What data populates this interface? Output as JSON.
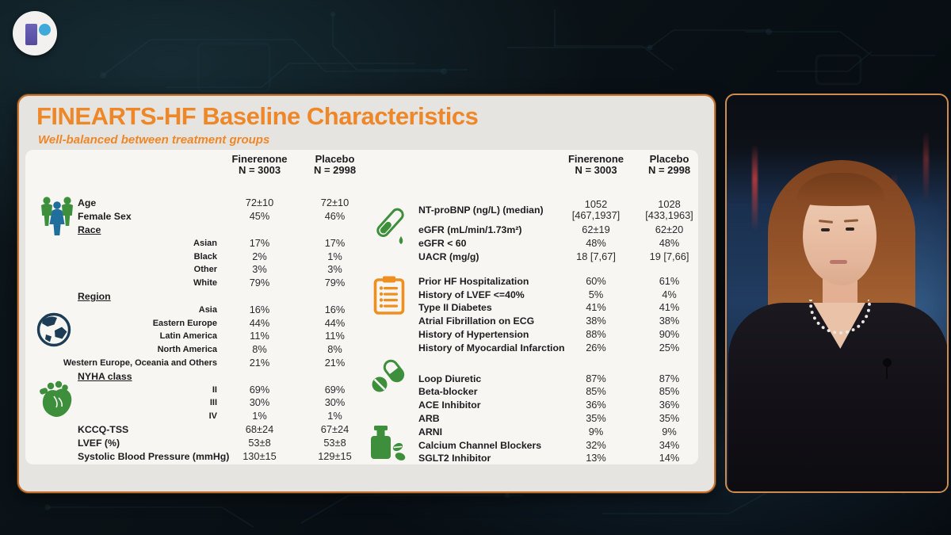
{
  "colors": {
    "accent_orange": "#ee8727",
    "slide_border_orange": "#c9732f",
    "icon_green": "#3e8f3c",
    "icon_navy": "#1d3c55",
    "icon_orange": "#ef8f1f",
    "figure_blue": "#1f6e9c",
    "logo_purple": "#5a50a5",
    "logo_blue": "#3fa9d9"
  },
  "icons": {
    "logo": "r-logo",
    "left": [
      "people-icon",
      "globe-icon",
      "heart-icon"
    ],
    "right": [
      "test-tube-icon",
      "clipboard-icon",
      "pills-icon",
      "medicine-bottle-icon"
    ]
  },
  "slide": {
    "title": "FINEARTS-HF Baseline Characteristics",
    "subtitle": "Well-balanced between treatment groups",
    "columns": {
      "col1": "Finerenone\nN = 3003",
      "col2": "Placebo\nN = 2998"
    },
    "left_table": {
      "rows": [
        {
          "t": "main",
          "l": "Age",
          "v1": "72±10",
          "v2": "72±10"
        },
        {
          "t": "main",
          "l": "Female Sex",
          "v1": "45%",
          "v2": "46%"
        },
        {
          "t": "cat",
          "l": "Race",
          "v1": "",
          "v2": ""
        },
        {
          "t": "sub",
          "l": "Asian",
          "v1": "17%",
          "v2": "17%"
        },
        {
          "t": "sub",
          "l": "Black",
          "v1": "2%",
          "v2": "1%"
        },
        {
          "t": "sub",
          "l": "Other",
          "v1": "3%",
          "v2": "3%"
        },
        {
          "t": "sub",
          "l": "White",
          "v1": "79%",
          "v2": "79%"
        },
        {
          "t": "cat",
          "l": "Region",
          "v1": "",
          "v2": ""
        },
        {
          "t": "sub",
          "l": "Asia",
          "v1": "16%",
          "v2": "16%"
        },
        {
          "t": "sub",
          "l": "Eastern Europe",
          "v1": "44%",
          "v2": "44%"
        },
        {
          "t": "sub",
          "l": "Latin America",
          "v1": "11%",
          "v2": "11%"
        },
        {
          "t": "sub",
          "l": "North America",
          "v1": "8%",
          "v2": "8%"
        },
        {
          "t": "sub",
          "l": "Western Europe, Oceania and Others",
          "v1": "21%",
          "v2": "21%"
        },
        {
          "t": "cat",
          "l": "NYHA class",
          "v1": "",
          "v2": ""
        },
        {
          "t": "sub",
          "l": "II",
          "v1": "69%",
          "v2": "69%"
        },
        {
          "t": "sub",
          "l": "III",
          "v1": "30%",
          "v2": "30%"
        },
        {
          "t": "sub",
          "l": "IV",
          "v1": "1%",
          "v2": "1%"
        },
        {
          "t": "main",
          "l": "KCCQ-TSS",
          "v1": "68±24",
          "v2": "67±24"
        },
        {
          "t": "main",
          "l": "LVEF (%)",
          "v1": "53±8",
          "v2": "53±8"
        },
        {
          "t": "main",
          "l": "Systolic Blood Pressure (mmHg)",
          "v1": "130±15",
          "v2": "129±15"
        }
      ]
    },
    "right_table": {
      "rows": [
        {
          "t": "main2",
          "l": "NT-proBNP (ng/L) (median)",
          "v1": "1052\n[467,1937]",
          "v2": "1028\n[433,1963]"
        },
        {
          "t": "main",
          "l": "eGFR (mL/min/1.73m²)",
          "v1": "62±19",
          "v2": "62±20"
        },
        {
          "t": "main",
          "l": "eGFR < 60",
          "v1": "48%",
          "v2": "48%"
        },
        {
          "t": "main",
          "l": "UACR (mg/g)",
          "v1": "18 [7,67]",
          "v2": "19 [7,66]"
        },
        {
          "t": "gap",
          "h": 14
        },
        {
          "t": "main",
          "l": "Prior HF Hospitalization",
          "v1": "60%",
          "v2": "61%"
        },
        {
          "t": "main",
          "l": "History of LVEF <=40%",
          "v1": "5%",
          "v2": "4%"
        },
        {
          "t": "main",
          "l": "Type II Diabetes",
          "v1": "41%",
          "v2": "41%"
        },
        {
          "t": "main",
          "l": "Atrial Fibrillation on ECG",
          "v1": "38%",
          "v2": "38%"
        },
        {
          "t": "main",
          "l": "History of Hypertension",
          "v1": "88%",
          "v2": "90%"
        },
        {
          "t": "main",
          "l": "History of Myocardial Infarction",
          "v1": "26%",
          "v2": "25%"
        },
        {
          "t": "gap",
          "h": 22
        },
        {
          "t": "main",
          "l": "Loop Diuretic",
          "v1": "87%",
          "v2": "87%"
        },
        {
          "t": "main",
          "l": "Beta-blocker",
          "v1": "85%",
          "v2": "85%"
        },
        {
          "t": "main",
          "l": "ACE Inhibitor",
          "v1": "36%",
          "v2": "36%"
        },
        {
          "t": "main",
          "l": "ARB",
          "v1": "35%",
          "v2": "35%"
        },
        {
          "t": "main",
          "l": "ARNI",
          "v1": "9%",
          "v2": "9%"
        },
        {
          "t": "main",
          "l": "Calcium Channel Blockers",
          "v1": "32%",
          "v2": "34%"
        },
        {
          "t": "main",
          "l": "SGLT2 Inhibitor",
          "v1": "13%",
          "v2": "14%"
        }
      ]
    }
  }
}
